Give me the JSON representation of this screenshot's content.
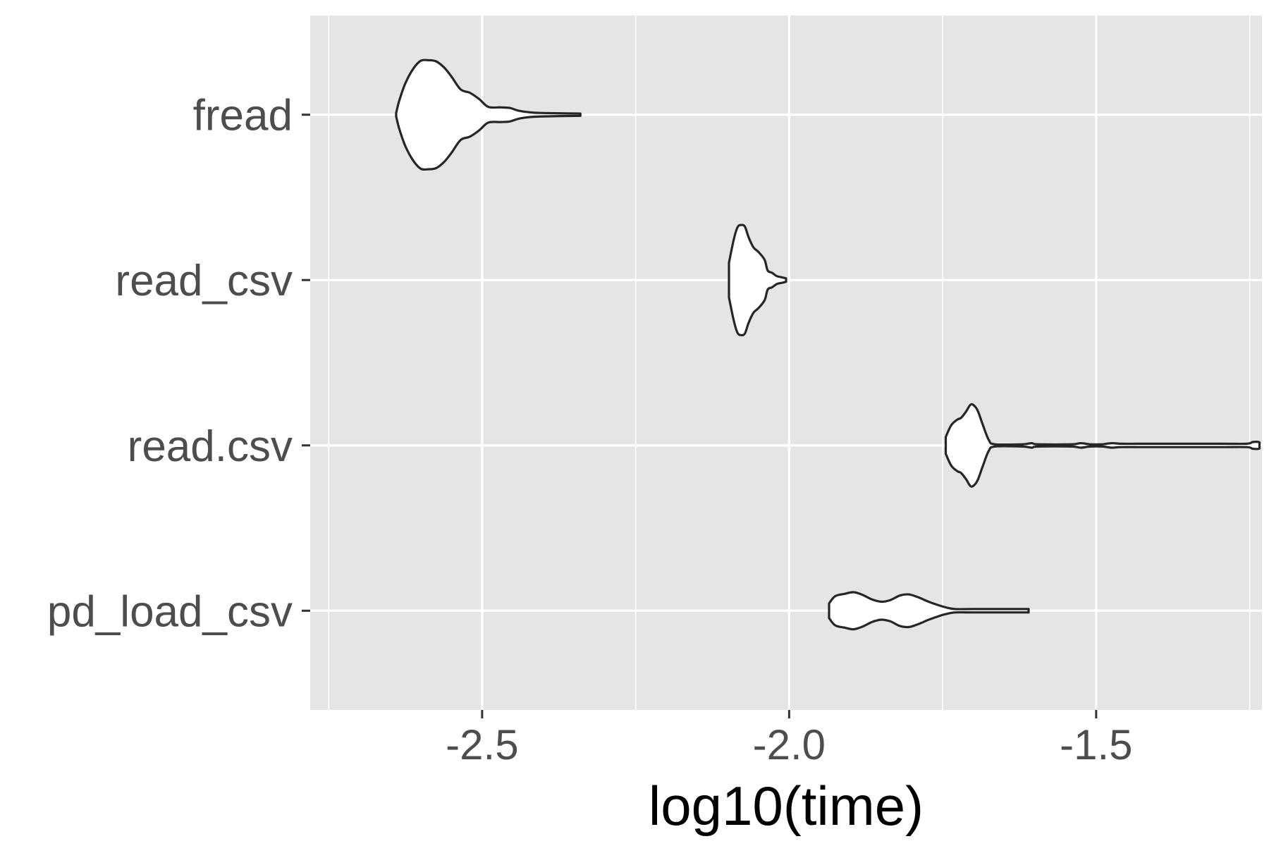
{
  "chart_data": {
    "type": "violin",
    "orientation": "horizontal",
    "xlabel": "log10(time)",
    "ylabel": "",
    "title": "",
    "xlim": [
      -2.78,
      -1.23
    ],
    "x_ticks": [
      -2.5,
      -2.0,
      -1.5
    ],
    "x_tick_labels": [
      "-2.5",
      "-2.0",
      "-1.5"
    ],
    "categories": [
      "fread",
      "read_csv",
      "read.csv",
      "pd_load_csv"
    ],
    "grid": true,
    "legend": "none",
    "colors": {
      "panel_background": "#e5e5e5",
      "grid": "#ffffff",
      "violin_fill": "#ffffff",
      "violin_stroke": "#262626",
      "tick_label": "#4d4d4d",
      "axis_title": "#000000"
    },
    "series": [
      {
        "category": "fread",
        "profile": [
          [
            -2.64,
            0.03
          ],
          [
            -2.635,
            0.25
          ],
          [
            -2.625,
            0.56
          ],
          [
            -2.612,
            0.82
          ],
          [
            -2.6,
            0.96
          ],
          [
            -2.588,
            0.97
          ],
          [
            -2.575,
            0.95
          ],
          [
            -2.562,
            0.84
          ],
          [
            -2.55,
            0.68
          ],
          [
            -2.535,
            0.45
          ],
          [
            -2.52,
            0.39
          ],
          [
            -2.505,
            0.28
          ],
          [
            -2.49,
            0.14
          ],
          [
            -2.47,
            0.13
          ],
          [
            -2.455,
            0.12
          ],
          [
            -2.44,
            0.07
          ],
          [
            -2.42,
            0.04
          ],
          [
            -2.4,
            0.03
          ],
          [
            -2.34,
            0.02
          ]
        ]
      },
      {
        "category": "read_csv",
        "profile": [
          [
            -2.098,
            0.31
          ],
          [
            -2.09,
            0.73
          ],
          [
            -2.084,
            0.94
          ],
          [
            -2.078,
            0.98
          ],
          [
            -2.072,
            0.95
          ],
          [
            -2.066,
            0.76
          ],
          [
            -2.058,
            0.58
          ],
          [
            -2.05,
            0.5
          ],
          [
            -2.04,
            0.36
          ],
          [
            -2.035,
            0.17
          ],
          [
            -2.028,
            0.13
          ],
          [
            -2.02,
            0.07
          ],
          [
            -2.012,
            0.05
          ],
          [
            -2.005,
            0.03
          ]
        ]
      },
      {
        "category": "read.csv",
        "profile": [
          [
            -1.745,
            0.15
          ],
          [
            -1.736,
            0.36
          ],
          [
            -1.726,
            0.46
          ],
          [
            -1.72,
            0.49
          ],
          [
            -1.712,
            0.6
          ],
          [
            -1.705,
            0.72
          ],
          [
            -1.7,
            0.72
          ],
          [
            -1.693,
            0.62
          ],
          [
            -1.685,
            0.38
          ],
          [
            -1.675,
            0.1
          ],
          [
            -1.665,
            0.02
          ],
          [
            -1.62,
            0.02
          ],
          [
            -1.605,
            0.04
          ],
          [
            -1.595,
            0.02
          ],
          [
            -1.54,
            0.02
          ],
          [
            -1.525,
            0.04
          ],
          [
            -1.51,
            0.02
          ],
          [
            -1.49,
            0.02
          ],
          [
            -1.475,
            0.04
          ],
          [
            -1.46,
            0.03
          ],
          [
            -1.43,
            0.03
          ],
          [
            -1.4,
            0.03
          ],
          [
            -1.3,
            0.03
          ],
          [
            -1.255,
            0.03
          ],
          [
            -1.245,
            0.06
          ],
          [
            -1.235,
            0.06
          ],
          [
            -1.234,
            0.03
          ]
        ]
      },
      {
        "category": "pd_load_csv",
        "profile": [
          [
            -1.935,
            0.13
          ],
          [
            -1.925,
            0.26
          ],
          [
            -1.91,
            0.3
          ],
          [
            -1.895,
            0.33
          ],
          [
            -1.88,
            0.28
          ],
          [
            -1.865,
            0.2
          ],
          [
            -1.85,
            0.16
          ],
          [
            -1.835,
            0.19
          ],
          [
            -1.82,
            0.27
          ],
          [
            -1.805,
            0.29
          ],
          [
            -1.79,
            0.24
          ],
          [
            -1.775,
            0.17
          ],
          [
            -1.76,
            0.11
          ],
          [
            -1.745,
            0.06
          ],
          [
            -1.73,
            0.03
          ],
          [
            -1.7,
            0.03
          ],
          [
            -1.65,
            0.03
          ],
          [
            -1.61,
            0.03
          ]
        ]
      }
    ]
  }
}
